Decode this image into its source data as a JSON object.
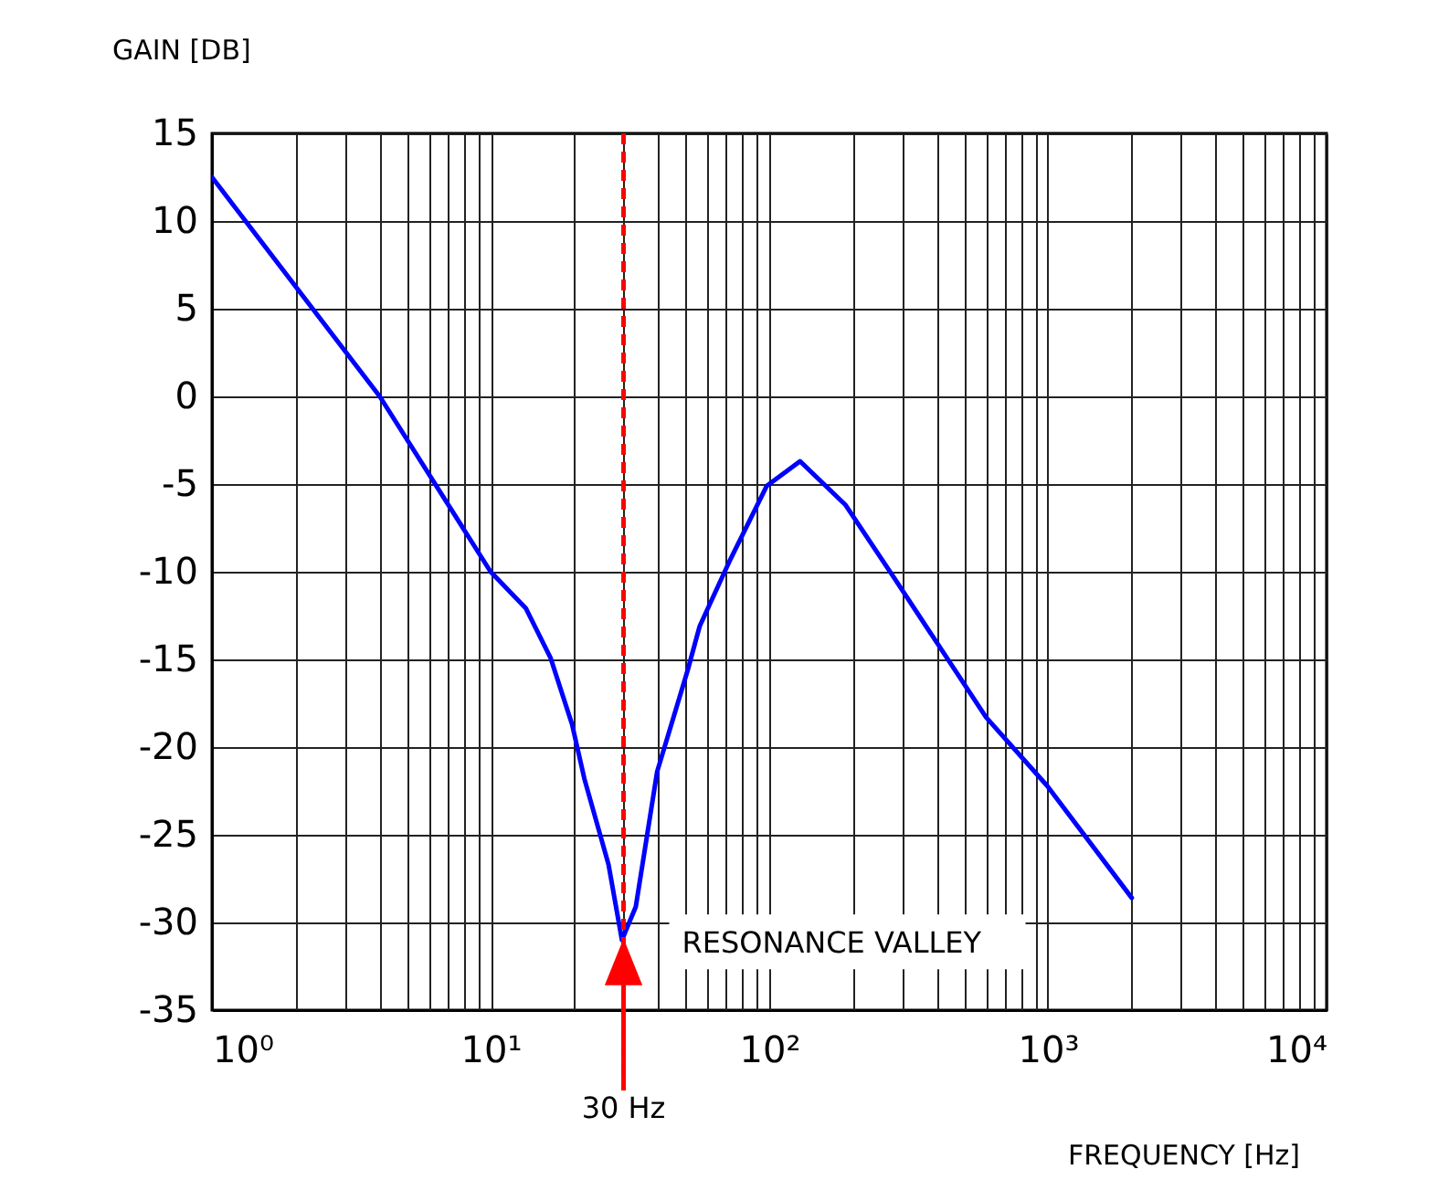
{
  "chart_data": {
    "type": "line",
    "xlabel": "FREQUENCY [Hz]",
    "ylabel": "GAIN [DB]",
    "x": [
      1,
      4,
      10,
      13.4,
      16.4,
      19.6,
      21.7,
      26.5,
      29.6,
      33.2,
      39.6,
      51,
      56.3,
      72.5,
      98,
      129,
      188,
      282,
      600,
      993,
      2000
    ],
    "series": [
      {
        "color": "#0000ff",
        "values": [
          12.5,
          0,
          -10,
          -12.1,
          -14.9,
          -18.7,
          -21.8,
          -26.7,
          -31,
          -29.1,
          -21.4,
          -15.6,
          -13.1,
          -9.3,
          -5.1,
          -3.7,
          -6.2,
          -10.4,
          -18.3,
          -22.2,
          -28.6
        ]
      }
    ],
    "log": "x",
    "xlim": [
      1,
      10000
    ],
    "ylim": [
      -35,
      15
    ],
    "xticks": [
      {
        "value": 1,
        "label": "10⁰"
      },
      {
        "value": 2,
        "label": null
      },
      {
        "value": 3,
        "label": null
      },
      {
        "value": 4,
        "label": null
      },
      {
        "value": 5,
        "label": null
      },
      {
        "value": 6,
        "label": null
      },
      {
        "value": 7,
        "label": null
      },
      {
        "value": 8,
        "label": null
      },
      {
        "value": 9,
        "label": null
      },
      {
        "value": 10,
        "label": "10¹"
      },
      {
        "value": 20,
        "label": null
      },
      {
        "value": 30,
        "label": null
      },
      {
        "value": 40,
        "label": null
      },
      {
        "value": 50,
        "label": null
      },
      {
        "value": 60,
        "label": null
      },
      {
        "value": 70,
        "label": null
      },
      {
        "value": 80,
        "label": null
      },
      {
        "value": 90,
        "label": null
      },
      {
        "value": 100,
        "label": "10²"
      },
      {
        "value": 200,
        "label": null
      },
      {
        "value": 300,
        "label": null
      },
      {
        "value": 400,
        "label": null
      },
      {
        "value": 500,
        "label": null
      },
      {
        "value": 600,
        "label": null
      },
      {
        "value": 700,
        "label": null
      },
      {
        "value": 800,
        "label": null
      },
      {
        "value": 900,
        "label": null
      },
      {
        "value": 1000,
        "label": "10³"
      },
      {
        "value": 2000,
        "label": null
      },
      {
        "value": 3000,
        "label": null
      },
      {
        "value": 4000,
        "label": null
      },
      {
        "value": 5000,
        "label": null
      },
      {
        "value": 6000,
        "label": null
      },
      {
        "value": 7000,
        "label": null
      },
      {
        "value": 8000,
        "label": null
      },
      {
        "value": 9000,
        "label": null
      },
      {
        "value": 10000,
        "label": "10⁴"
      }
    ],
    "yticks": [
      -35,
      -30,
      -25,
      -20,
      -15,
      -10,
      -5,
      0,
      5,
      10,
      15
    ],
    "grid": true,
    "marker": "none",
    "line_style": "solid",
    "ref_lines": [
      {
        "axis": "x",
        "value": 30,
        "label": "30 Hz",
        "color": "#ff0000",
        "line_style": "dashed"
      }
    ],
    "annotations": [
      {
        "text": "RESONANCE VALLEY",
        "x": 30,
        "y": -31
      }
    ]
  }
}
